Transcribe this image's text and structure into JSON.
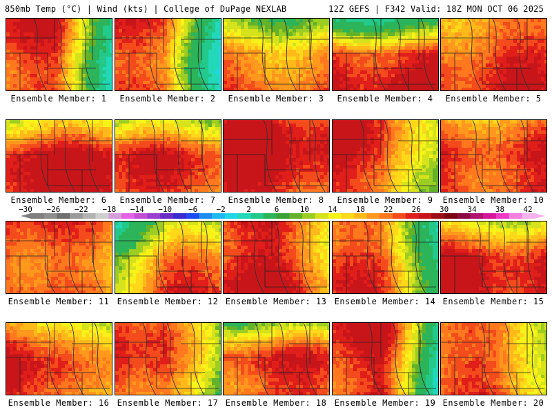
{
  "header": {
    "left": "850mb Temp (°C) | Wind (kts) | College of DuPage NEXLAB",
    "right": "12Z GEFS | F342 Valid: 18Z MON OCT 06 2025"
  },
  "panels": [
    {
      "label": "Ensemble Member: 1",
      "base": 0.78,
      "cool": "right",
      "cool_strength": 0.85
    },
    {
      "label": "Ensemble Member: 2",
      "base": 0.74,
      "cool": "right",
      "cool_strength": 0.95
    },
    {
      "label": "Ensemble Member: 3",
      "base": 0.72,
      "cool": "top",
      "cool_strength": 0.55
    },
    {
      "label": "Ensemble Member: 4",
      "base": 0.9,
      "cool": "top",
      "cool_strength": 0.9
    },
    {
      "label": "Ensemble Member: 5",
      "base": 0.78,
      "cool": "none",
      "cool_strength": 0.2
    },
    {
      "label": "Ensemble Member: 6",
      "base": 0.9,
      "cool": "top",
      "cool_strength": 0.4
    },
    {
      "label": "Ensemble Member: 7",
      "base": 0.78,
      "cool": "top",
      "cool_strength": 0.45
    },
    {
      "label": "Ensemble Member: 8",
      "base": 0.92,
      "cool": "none",
      "cool_strength": 0.2
    },
    {
      "label": "Ensemble Member: 9",
      "base": 0.85,
      "cool": "right",
      "cool_strength": 0.6
    },
    {
      "label": "Ensemble Member: 10",
      "base": 0.9,
      "cool": "top",
      "cool_strength": 0.35
    },
    {
      "label": "Ensemble Member: 11",
      "base": 0.86,
      "cool": "right",
      "cool_strength": 0.3
    },
    {
      "label": "Ensemble Member: 12",
      "base": 0.78,
      "cool": "topleft",
      "cool_strength": 0.7
    },
    {
      "label": "Ensemble Member: 13",
      "base": 0.9,
      "cool": "right",
      "cool_strength": 0.3
    },
    {
      "label": "Ensemble Member: 14",
      "base": 0.72,
      "cool": "right",
      "cool_strength": 0.7
    },
    {
      "label": "Ensemble Member: 15",
      "base": 0.86,
      "cool": "top",
      "cool_strength": 0.4
    },
    {
      "label": "Ensemble Member: 16",
      "base": 0.86,
      "cool": "topright",
      "cool_strength": 0.55
    },
    {
      "label": "Ensemble Member: 17",
      "base": 0.84,
      "cool": "right",
      "cool_strength": 0.75
    },
    {
      "label": "Ensemble Member: 18",
      "base": 0.84,
      "cool": "top",
      "cool_strength": 0.7
    },
    {
      "label": "Ensemble Member: 19",
      "base": 0.86,
      "cool": "right",
      "cool_strength": 0.95
    },
    {
      "label": "Ensemble Member: 20",
      "base": 0.78,
      "cool": "topright",
      "cool_strength": 0.4
    }
  ],
  "colorbar": {
    "ticks": [
      "−30",
      "−26",
      "−22",
      "−18",
      "−14",
      "−10",
      "−6",
      "−2",
      "2",
      "6",
      "10",
      "14",
      "18",
      "22",
      "26",
      "30",
      "34",
      "38",
      "42"
    ],
    "colors": [
      "#7f7f7f",
      "#8e8e8e",
      "#6f6f6f",
      "#9a9a9a",
      "#b3b3b3",
      "#cfcfcf",
      "#d69ddb",
      "#e463e4",
      "#c24fd6",
      "#9b3fd0",
      "#6a2cc4",
      "#3a2bd0",
      "#1e4bf0",
      "#1e8cf0",
      "#1fb8f0",
      "#20d6e6",
      "#22d8b8",
      "#22c98a",
      "#2bb45a",
      "#3aa235",
      "#63b22a",
      "#9ccd23",
      "#d6e21c",
      "#f7f218",
      "#ffd81a",
      "#ffba1a",
      "#ff981c",
      "#ff781e",
      "#f44b1c",
      "#e01e1a",
      "#c8151a",
      "#9e0d15",
      "#7a0510",
      "#8a0a40",
      "#b0106e",
      "#d4179a",
      "#ee3bc8",
      "#f27fe0",
      "#f5b3ec"
    ]
  }
}
